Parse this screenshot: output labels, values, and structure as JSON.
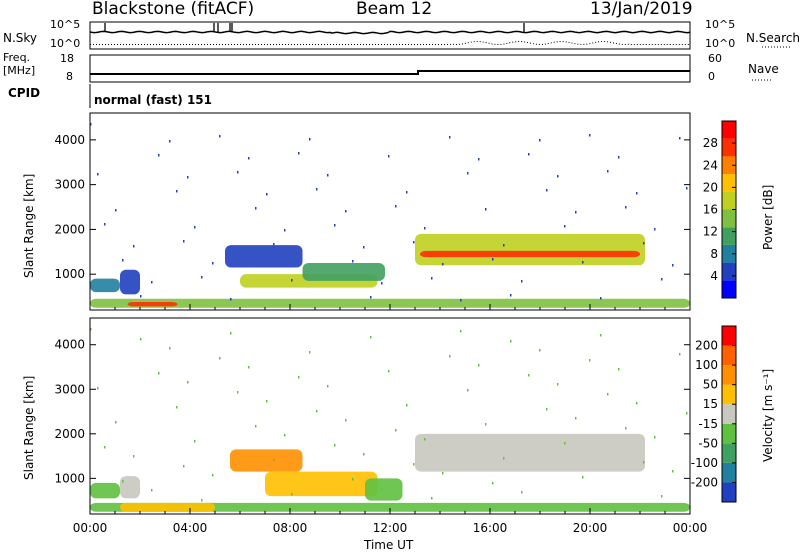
{
  "header": {
    "site": "Blackstone (fitACF)",
    "beam": "Beam 12",
    "date": "13/Jan/2019"
  },
  "panels": {
    "nsky_label": "N.Sky",
    "nsearch_label": "N.Search",
    "nsky_ticks": [
      "10^5",
      "10^0"
    ],
    "nsearch_ticks": [
      "10^5",
      "10^0"
    ],
    "freq_label_line1": "Freq.",
    "freq_label_line2": "[MHz]",
    "freq_ticks": [
      "18",
      "8"
    ],
    "nave_label": "Nave",
    "nave_ticks": [
      "60",
      "0"
    ],
    "cpid_label": "CPID",
    "cpid_text": "normal (fast) 151"
  },
  "chart_data": [
    {
      "type": "heatmap",
      "name": "Power",
      "ylabel": "Slant Range [km]",
      "yticks": [
        1000,
        2000,
        3000,
        4000
      ],
      "ylim": [
        200,
        4600
      ],
      "xlim": [
        0,
        24
      ],
      "colorbar_label": "Power [dB]",
      "colorbar_ticks": [
        "28",
        "24",
        "20",
        "16",
        "12",
        "8",
        "4"
      ],
      "colorbar_colors": [
        "#0000ff",
        "#2040c0",
        "#2080a0",
        "#40a060",
        "#80c040",
        "#c0d020",
        "#ffc000",
        "#ff8000",
        "#ff3000",
        "#ff0000"
      ],
      "features": [
        {
          "t0": 0.0,
          "t1": 24.0,
          "r0": 250,
          "r1": 450,
          "level": 0.45
        },
        {
          "t0": 0.0,
          "t1": 1.2,
          "r0": 600,
          "r1": 900,
          "level": 0.2
        },
        {
          "t0": 1.2,
          "t1": 2.0,
          "r0": 550,
          "r1": 1100,
          "level": 0.15
        },
        {
          "t0": 5.4,
          "t1": 8.5,
          "r0": 1150,
          "r1": 1650,
          "level": 0.15
        },
        {
          "t0": 6.0,
          "t1": 11.5,
          "r0": 700,
          "r1": 1000,
          "level": 0.5
        },
        {
          "t0": 8.5,
          "t1": 11.8,
          "r0": 850,
          "r1": 1250,
          "level": 0.35
        },
        {
          "t0": 13.0,
          "t1": 22.2,
          "r0": 1200,
          "r1": 1900,
          "level": 0.6
        },
        {
          "t0": 13.2,
          "t1": 22.0,
          "r0": 1380,
          "r1": 1520,
          "level": 0.9
        },
        {
          "t0": 1.5,
          "t1": 3.5,
          "r0": 280,
          "r1": 380,
          "level": 0.9
        }
      ]
    },
    {
      "type": "heatmap",
      "name": "Velocity",
      "ylabel": "Slant Range [km]",
      "yticks": [
        1000,
        2000,
        3000,
        4000
      ],
      "ylim": [
        200,
        4600
      ],
      "xlim": [
        0,
        24
      ],
      "xticks": [
        "00:00",
        "04:00",
        "08:00",
        "12:00",
        "16:00",
        "20:00",
        "00:00"
      ],
      "xlabel": "Time UT",
      "colorbar_label": "Velocity [m s⁻¹]",
      "colorbar_ticks": [
        "200",
        "100",
        "50",
        "15",
        "-15",
        "-50",
        "-100",
        "-200"
      ],
      "colorbar_colors": [
        "#2040c0",
        "#2080a0",
        "#40a060",
        "#60c040",
        "#c8c8c0",
        "#ffc000",
        "#ff9000",
        "#ff6000",
        "#ff0000"
      ],
      "features": [
        {
          "t0": 0.0,
          "t1": 24.0,
          "r0": 250,
          "r1": 450,
          "color": "#60c040"
        },
        {
          "t0": 0.0,
          "t1": 1.2,
          "r0": 550,
          "r1": 900,
          "color": "#60c040"
        },
        {
          "t0": 1.2,
          "t1": 2.0,
          "r0": 550,
          "r1": 1050,
          "color": "#c8c8c0"
        },
        {
          "t0": 1.2,
          "t1": 5.0,
          "r0": 250,
          "r1": 450,
          "color": "#ffc000"
        },
        {
          "t0": 5.6,
          "t1": 8.5,
          "r0": 1150,
          "r1": 1650,
          "color": "#ff9000"
        },
        {
          "t0": 7.0,
          "t1": 11.5,
          "r0": 600,
          "r1": 1150,
          "color": "#ffc000"
        },
        {
          "t0": 11.0,
          "t1": 12.5,
          "r0": 500,
          "r1": 1000,
          "color": "#60c040"
        },
        {
          "t0": 13.0,
          "t1": 22.2,
          "r0": 1150,
          "r1": 2000,
          "color": "#c8c8c0"
        }
      ]
    }
  ]
}
